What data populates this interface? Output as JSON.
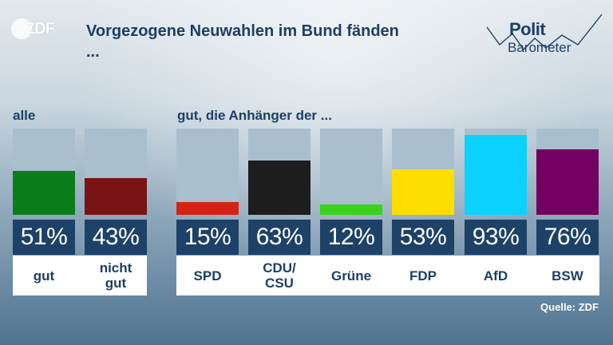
{
  "brand": {
    "logo_text": "ZDF",
    "logo_name": "zdf-logo"
  },
  "header": {
    "title": "Vorgezogene Neuwahlen im Bund fänden\n...",
    "polit_word1": "Polit",
    "polit_word2": "Barometer"
  },
  "sections": {
    "all_label": "alle",
    "party_label": "gut, die Anhänger der ..."
  },
  "source": "Quelle: ZDF",
  "colors": {
    "gut": "#0a7d1a",
    "nicht_gut": "#7a1414",
    "SPD": "#d42314",
    "CDU_CSU": "#1d1d1d",
    "Gruene": "#3ad11c",
    "FDP": "#ffde00",
    "AfD": "#0bd1ff",
    "BSW": "#720060",
    "bar_track": "#a9bfcd",
    "value_box": "#1d4167",
    "title_text": "#1c3f66"
  },
  "chart_data": {
    "type": "bar",
    "title": "Vorgezogene Neuwahlen im Bund fänden ...",
    "ylim": [
      0,
      100
    ],
    "groups": [
      {
        "label": "alle",
        "categories": [
          "gut",
          "nicht\ngut"
        ]
      },
      {
        "label": "gut, die Anhänger der ...",
        "categories": [
          "SPD",
          "CDU/\nCSU",
          "Grüne",
          "FDP",
          "AfD",
          "BSW"
        ]
      }
    ],
    "categories": [
      "gut",
      "nicht\ngut",
      "SPD",
      "CDU/\nCSU",
      "Grüne",
      "FDP",
      "AfD",
      "BSW"
    ],
    "values": [
      51,
      43,
      15,
      63,
      12,
      53,
      93,
      76
    ],
    "value_labels": [
      "51%",
      "43%",
      "15%",
      "63%",
      "12%",
      "53%",
      "93%",
      "76%"
    ],
    "bar_colors": [
      "#0a7d1a",
      "#7a1414",
      "#d42314",
      "#1d1d1d",
      "#3ad11c",
      "#ffde00",
      "#0bd1ff",
      "#720060"
    ]
  }
}
